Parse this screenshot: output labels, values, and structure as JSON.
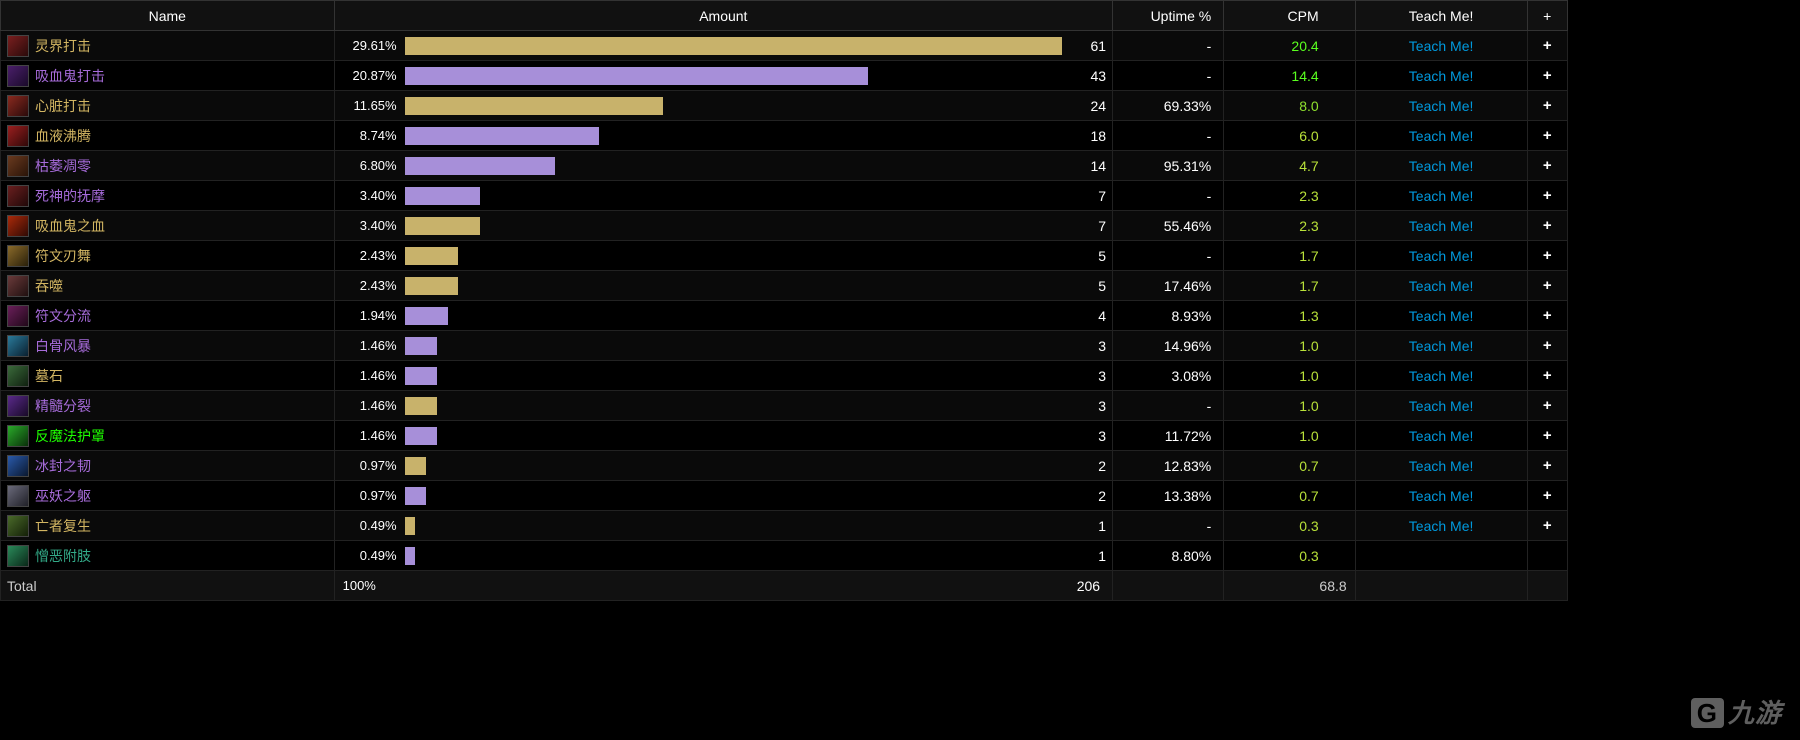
{
  "colors": {
    "bg": "#000000",
    "row_odd": "#0a0a0a",
    "row_even": "#000000",
    "header_bg": "#111111",
    "border": "#222222",
    "text": "#ffffff",
    "bar_gold": "#c8b26b",
    "bar_purple": "#a78fd9",
    "name_gold": "#d2b562",
    "name_purple": "#a66bd9",
    "name_green": "#1eff00",
    "name_teal": "#33aa88",
    "cpm_bright_green": "#5aff1f",
    "cpm_yellow_green": "#b9e23a",
    "teach_link": "#0099dd"
  },
  "headers": {
    "name": "Name",
    "amount": "Amount",
    "uptime": "Uptime %",
    "cpm": "CPM",
    "teach": "Teach Me!",
    "plus": "+"
  },
  "teach_label": "Teach Me!",
  "plus_label": "+",
  "max_count": 61,
  "total": {
    "label": "Total",
    "pct": "100%",
    "count": 206,
    "cpm": "68.8"
  },
  "watermark": "九游",
  "rows": [
    {
      "name": "灵界打击",
      "name_color": "#d2b562",
      "icon_bg": "linear-gradient(135deg,#7a1f1f,#2a0a0a)",
      "pct": "29.61%",
      "bar_color": "#c8b26b",
      "count": 61,
      "uptime": "-",
      "cpm": "20.4",
      "cpm_color": "#5aff1f",
      "teach": true,
      "plus": true
    },
    {
      "name": "吸血鬼打击",
      "name_color": "#a66bd9",
      "icon_bg": "linear-gradient(135deg,#4a1f6a,#1a0a2a)",
      "pct": "20.87%",
      "bar_color": "#a78fd9",
      "count": 43,
      "uptime": "-",
      "cpm": "14.4",
      "cpm_color": "#5aff1f",
      "teach": true,
      "plus": true
    },
    {
      "name": "心脏打击",
      "name_color": "#d2b562",
      "icon_bg": "linear-gradient(135deg,#8a2a1f,#2a0a0a)",
      "pct": "11.65%",
      "bar_color": "#c8b26b",
      "count": 24,
      "uptime": "69.33%",
      "cpm": "8.0",
      "cpm_color": "#8fe22f",
      "teach": true,
      "plus": true
    },
    {
      "name": "血液沸腾",
      "name_color": "#d2b562",
      "icon_bg": "linear-gradient(135deg,#9a1f1f,#300808)",
      "pct": "8.74%",
      "bar_color": "#a78fd9",
      "count": 18,
      "uptime": "-",
      "cpm": "6.0",
      "cpm_color": "#b9e23a",
      "teach": true,
      "plus": true
    },
    {
      "name": "枯萎凋零",
      "name_color": "#a66bd9",
      "icon_bg": "linear-gradient(135deg,#6a3a1f,#2a1408)",
      "pct": "6.80%",
      "bar_color": "#a78fd9",
      "count": 14,
      "uptime": "95.31%",
      "cpm": "4.7",
      "cpm_color": "#b9e23a",
      "teach": true,
      "plus": true
    },
    {
      "name": "死神的抚摩",
      "name_color": "#a66bd9",
      "icon_bg": "linear-gradient(135deg,#6a1f1f,#200808)",
      "pct": "3.40%",
      "bar_color": "#a78fd9",
      "count": 7,
      "uptime": "-",
      "cpm": "2.3",
      "cpm_color": "#b9e23a",
      "teach": true,
      "plus": true
    },
    {
      "name": "吸血鬼之血",
      "name_color": "#d2b562",
      "icon_bg": "linear-gradient(135deg,#aa2a0a,#300a04)",
      "pct": "3.40%",
      "bar_color": "#c8b26b",
      "count": 7,
      "uptime": "55.46%",
      "cpm": "2.3",
      "cpm_color": "#b9e23a",
      "teach": true,
      "plus": true
    },
    {
      "name": "符文刃舞",
      "name_color": "#d2b562",
      "icon_bg": "linear-gradient(135deg,#8a6a2a,#2a200a)",
      "pct": "2.43%",
      "bar_color": "#c8b26b",
      "count": 5,
      "uptime": "-",
      "cpm": "1.7",
      "cpm_color": "#b9e23a",
      "teach": true,
      "plus": true
    },
    {
      "name": "吞噬",
      "name_color": "#d2b562",
      "icon_bg": "linear-gradient(135deg,#6a3a3a,#201010)",
      "pct": "2.43%",
      "bar_color": "#c8b26b",
      "count": 5,
      "uptime": "17.46%",
      "cpm": "1.7",
      "cpm_color": "#b9e23a",
      "teach": true,
      "plus": true
    },
    {
      "name": "符文分流",
      "name_color": "#a66bd9",
      "icon_bg": "linear-gradient(135deg,#6a1f5a,#200818)",
      "pct": "1.94%",
      "bar_color": "#a78fd9",
      "count": 4,
      "uptime": "8.93%",
      "cpm": "1.3",
      "cpm_color": "#b9e23a",
      "teach": true,
      "plus": true
    },
    {
      "name": "白骨风暴",
      "name_color": "#a66bd9",
      "icon_bg": "linear-gradient(135deg,#2a7a9a,#0a2030)",
      "pct": "1.46%",
      "bar_color": "#a78fd9",
      "count": 3,
      "uptime": "14.96%",
      "cpm": "1.0",
      "cpm_color": "#b9e23a",
      "teach": true,
      "plus": true
    },
    {
      "name": "墓石",
      "name_color": "#d2b562",
      "icon_bg": "linear-gradient(135deg,#3a6a3a,#102010)",
      "pct": "1.46%",
      "bar_color": "#a78fd9",
      "count": 3,
      "uptime": "3.08%",
      "cpm": "1.0",
      "cpm_color": "#b9e23a",
      "teach": true,
      "plus": true
    },
    {
      "name": "精髓分裂",
      "name_color": "#a66bd9",
      "icon_bg": "linear-gradient(135deg,#5a2a8a,#180a28)",
      "pct": "1.46%",
      "bar_color": "#c8b26b",
      "count": 3,
      "uptime": "-",
      "cpm": "1.0",
      "cpm_color": "#b9e23a",
      "teach": true,
      "plus": true
    },
    {
      "name": "反魔法护罩",
      "name_color": "#1eff00",
      "icon_bg": "linear-gradient(135deg,#2aaa2a,#0a300a)",
      "pct": "1.46%",
      "bar_color": "#a78fd9",
      "count": 3,
      "uptime": "11.72%",
      "cpm": "1.0",
      "cpm_color": "#b9e23a",
      "teach": true,
      "plus": true
    },
    {
      "name": "冰封之韧",
      "name_color": "#a66bd9",
      "icon_bg": "linear-gradient(135deg,#2a5aaa,#0a1830)",
      "pct": "0.97%",
      "bar_color": "#c8b26b",
      "count": 2,
      "uptime": "12.83%",
      "cpm": "0.7",
      "cpm_color": "#b9e23a",
      "teach": true,
      "plus": true
    },
    {
      "name": "巫妖之躯",
      "name_color": "#a66bd9",
      "icon_bg": "linear-gradient(135deg,#6a6a7a,#202028)",
      "pct": "0.97%",
      "bar_color": "#a78fd9",
      "count": 2,
      "uptime": "13.38%",
      "cpm": "0.7",
      "cpm_color": "#b9e23a",
      "teach": true,
      "plus": true
    },
    {
      "name": "亡者复生",
      "name_color": "#d2b562",
      "icon_bg": "linear-gradient(135deg,#4a6a2a,#142008)",
      "pct": "0.49%",
      "bar_color": "#c8b26b",
      "count": 1,
      "uptime": "-",
      "cpm": "0.3",
      "cpm_color": "#b9e23a",
      "teach": true,
      "plus": true
    },
    {
      "name": "憎恶附肢",
      "name_color": "#33aa88",
      "icon_bg": "linear-gradient(135deg,#2a8a5a,#0a2818)",
      "pct": "0.49%",
      "bar_color": "#a78fd9",
      "count": 1,
      "uptime": "8.80%",
      "cpm": "0.3",
      "cpm_color": "#b9e23a",
      "teach": false,
      "plus": false
    }
  ]
}
